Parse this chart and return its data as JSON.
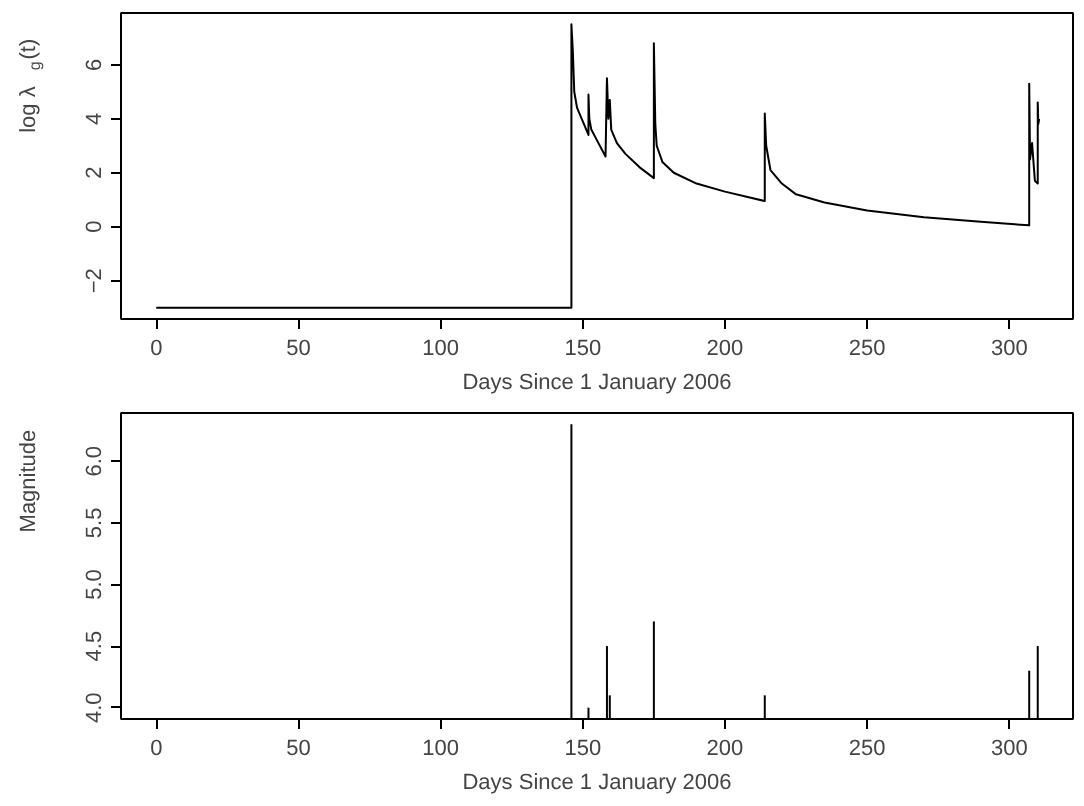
{
  "chart_data": [
    {
      "type": "line",
      "xlabel": "Days Since 1 January 2006",
      "ylabel": "log λ$_{g}$(t)",
      "xlim": [
        -12.4,
        322.4
      ],
      "ylim": [
        -3.42,
        7.92
      ],
      "xticks": [
        0,
        50,
        100,
        150,
        200,
        250,
        300
      ],
      "yticks": [
        -2,
        0,
        2,
        4,
        6
      ],
      "x": [
        0,
        146,
        146,
        146.5,
        147,
        148,
        150,
        152,
        152,
        152.3,
        153,
        155,
        158,
        158.5,
        159,
        159.5,
        160,
        162,
        165,
        170,
        175,
        175,
        175.5,
        176,
        178,
        182,
        190,
        200,
        214,
        214,
        214.5,
        216,
        220,
        225,
        235,
        250,
        270,
        290,
        307,
        307,
        307.3,
        308,
        309,
        310,
        310,
        310.2,
        310.5
      ],
      "series": [
        {
          "color": "#000000",
          "values": [
            -3,
            -3,
            7.5,
            6.5,
            5.0,
            4.4,
            3.9,
            3.4,
            4.9,
            4.0,
            3.6,
            3.2,
            2.6,
            5.5,
            4.0,
            4.7,
            3.6,
            3.1,
            2.7,
            2.2,
            1.8,
            6.8,
            3.8,
            3.0,
            2.4,
            2.0,
            1.6,
            1.3,
            0.95,
            4.2,
            3.0,
            2.1,
            1.6,
            1.2,
            0.9,
            0.6,
            0.35,
            0.18,
            0.05,
            5.3,
            2.5,
            3.1,
            1.7,
            1.6,
            4.6,
            3.8,
            4.0
          ]
        }
      ]
    },
    {
      "type": "bar",
      "xlabel": "Days Since 1 January 2006",
      "ylabel": "Magnitude",
      "xlim": [
        -12.4,
        322.4
      ],
      "ylim": [
        3.908,
        6.392
      ],
      "xticks": [
        0,
        50,
        100,
        150,
        200,
        250,
        300
      ],
      "yticks": [
        {
          "value": 4,
          "label": "4.0"
        },
        4.5,
        {
          "value": 5,
          "label": "5.0"
        },
        5.5,
        {
          "value": 6,
          "label": "6.0"
        }
      ],
      "x": [
        146,
        152,
        158.5,
        159.5,
        175,
        214,
        307,
        310
      ],
      "series": [
        {
          "color": "#000000",
          "values": [
            6.3,
            4.0,
            4.5,
            4.1,
            4.7,
            4.1,
            4.3,
            4.5
          ]
        }
      ]
    }
  ]
}
